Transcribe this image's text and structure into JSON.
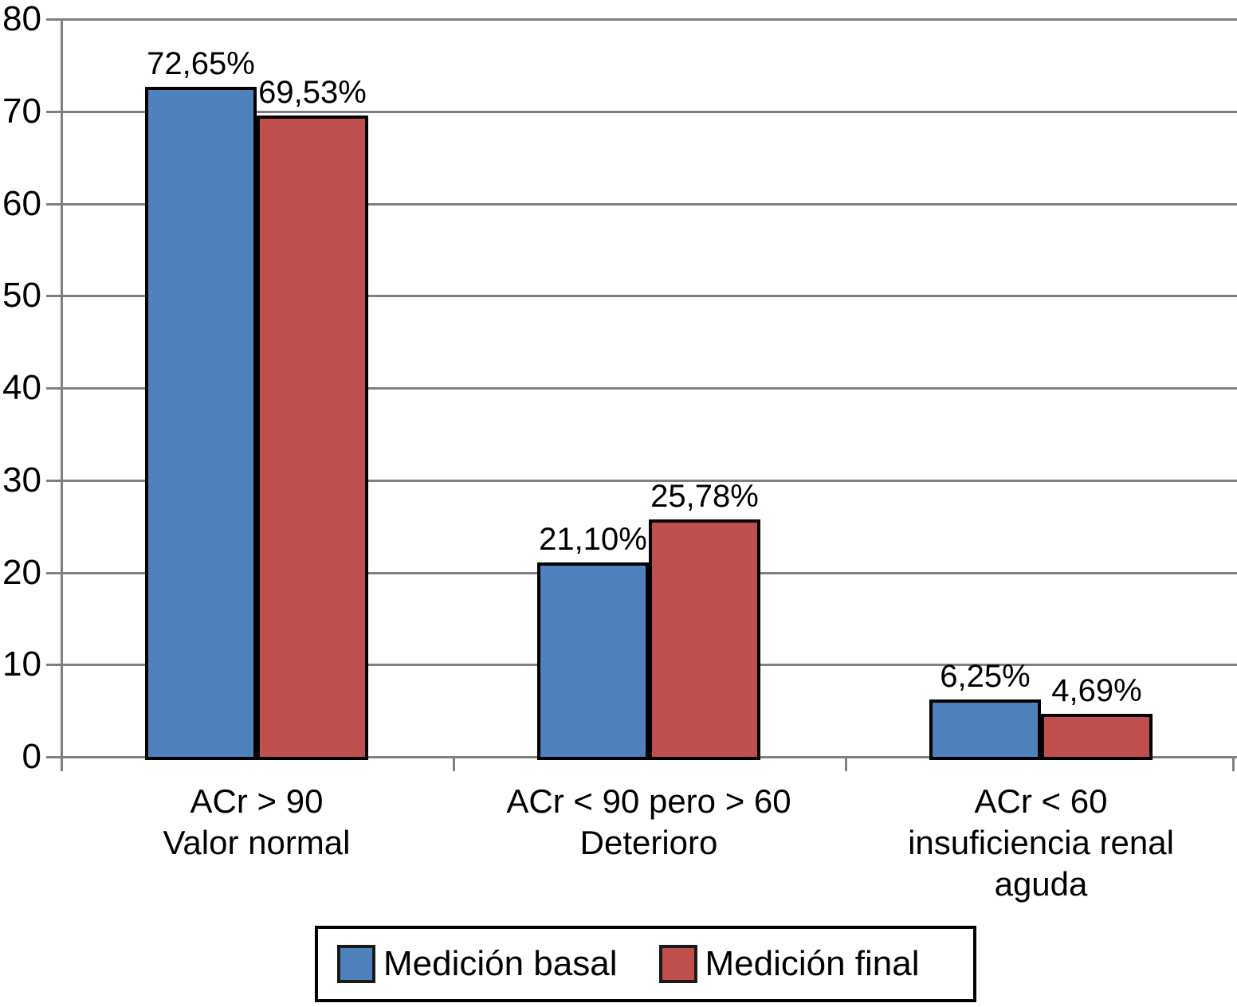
{
  "chart_data": {
    "type": "bar",
    "title": "",
    "xlabel": "",
    "ylabel": "",
    "ylim": [
      0,
      80
    ],
    "yticks": [
      0,
      10,
      20,
      30,
      40,
      50,
      60,
      70,
      80
    ],
    "ytick_labels": [
      "0",
      "10",
      "20",
      "30",
      "40",
      "50",
      "60",
      "70",
      "80"
    ],
    "grid": true,
    "legend_position": "bottom",
    "categories": [
      {
        "lines": [
          "ACr > 90",
          "Valor normal"
        ]
      },
      {
        "lines": [
          "ACr < 90 pero > 60",
          "Deterioro"
        ]
      },
      {
        "lines": [
          "ACr < 60",
          "insuficiencia renal",
          "aguda"
        ]
      }
    ],
    "series": [
      {
        "name": "Medición basal",
        "color": "#4F81BD",
        "values": [
          72.65,
          21.1,
          6.25
        ],
        "value_labels": [
          "72,65%",
          "21,10%",
          "6,25%"
        ]
      },
      {
        "name": "Medición final",
        "color": "#C0504D",
        "values": [
          69.53,
          25.78,
          4.69
        ],
        "value_labels": [
          "69,53%",
          "25,78%",
          "4,69%"
        ]
      }
    ],
    "colors": {
      "gridline": "#808080",
      "axis": "#808080",
      "bar_border": "#000000",
      "text": "#000000"
    }
  }
}
